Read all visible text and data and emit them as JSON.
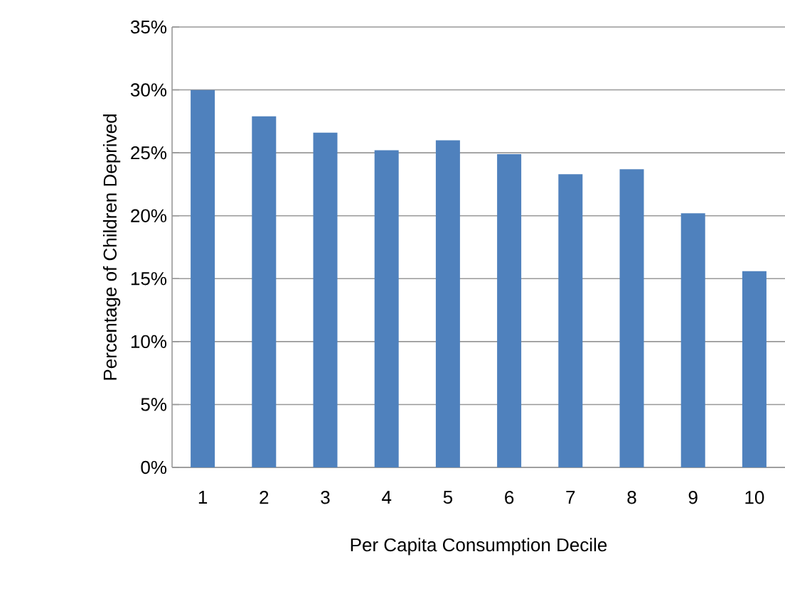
{
  "chart_data": {
    "type": "bar",
    "xlabel": "Per Capita Consumption Decile",
    "ylabel": "Percentage of Children Deprived",
    "categories": [
      "1",
      "2",
      "3",
      "4",
      "5",
      "6",
      "7",
      "8",
      "9",
      "10"
    ],
    "values": [
      30.0,
      27.9,
      26.6,
      25.2,
      26.0,
      24.9,
      23.3,
      23.7,
      20.2,
      15.6
    ],
    "color": "#4f81bd",
    "ylim": [
      0,
      35
    ],
    "yticks": [
      {
        "value": 0,
        "label": "0%"
      },
      {
        "value": 5,
        "label": "5%"
      },
      {
        "value": 10,
        "label": "10%"
      },
      {
        "value": 15,
        "label": "15%"
      },
      {
        "value": 20,
        "label": "20%"
      },
      {
        "value": 25,
        "label": "25%"
      },
      {
        "value": 30,
        "label": "30%"
      },
      {
        "value": 35,
        "label": "35%"
      }
    ],
    "grid": "y"
  }
}
